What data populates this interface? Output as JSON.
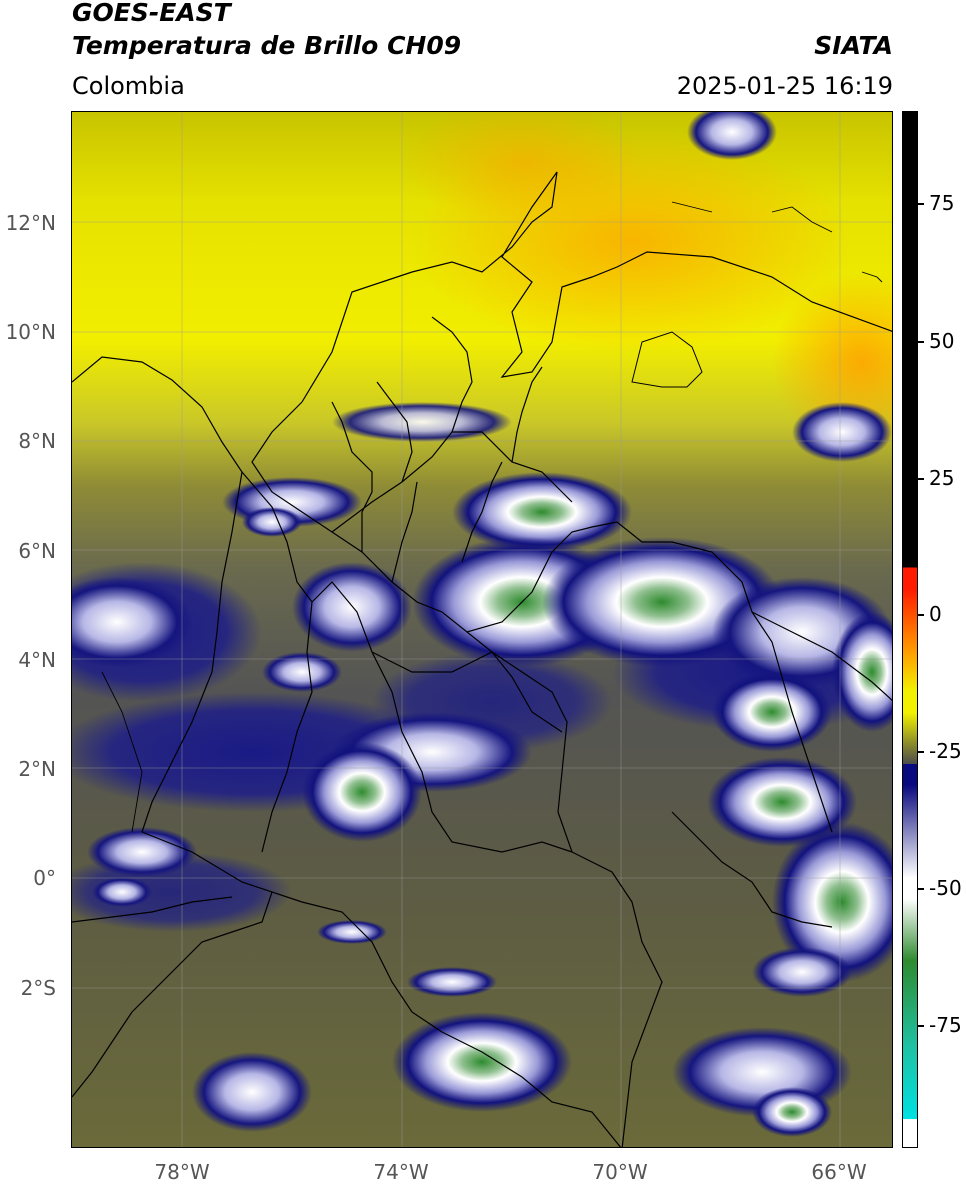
{
  "header": {
    "satellite": "GOES-EAST",
    "product": "Temperatura de Brillo CH09",
    "region": "Colombia",
    "organization": "SIATA",
    "timestamp": "2025-01-25 16:19"
  },
  "axes": {
    "lat_labels": [
      "12°N",
      "10°N",
      "8°N",
      "6°N",
      "4°N",
      "2°N",
      "0°",
      "2°S"
    ],
    "lon_labels": [
      "78°W",
      "74°W",
      "70°W",
      "66°W"
    ]
  },
  "colorbar": {
    "tick_labels": [
      "75",
      "50",
      "25",
      "0",
      "-25",
      "-50",
      "-75"
    ],
    "colors": {
      "black": "#000000",
      "red": "#ff1a00",
      "orange": "#ff9a00",
      "yellow": "#f2f200",
      "olive": "#8c8c2a",
      "gray": "#4c4c4c",
      "navy": "#0a0a80",
      "white": "#ffffff",
      "green": "#2e8b2e",
      "teal": "#20c0a0",
      "cyan": "#00e0e0"
    }
  },
  "icons": [
    "coastline-lines",
    "graticule-grid"
  ]
}
